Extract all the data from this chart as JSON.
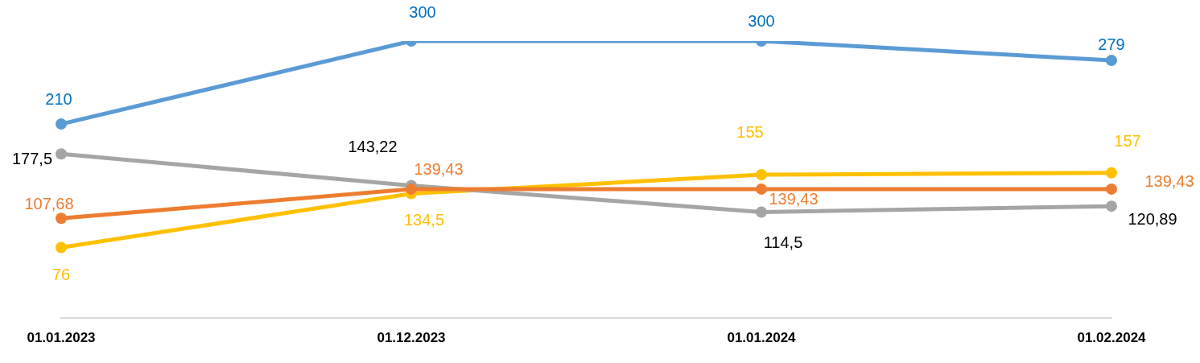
{
  "chart_data": {
    "type": "line",
    "categories": [
      "01.01.2023",
      "01.12.2023",
      "01.01.2024",
      "01.02.2024"
    ],
    "grid": false,
    "legend": false,
    "marker": "circle",
    "line_style": "solid",
    "tick_labels": "x",
    "series": [
      {
        "color": "#5b9bd5",
        "values": [
          210,
          300,
          300,
          279
        ],
        "value_labels": [
          "210",
          "300",
          "300",
          "279"
        ]
      },
      {
        "color": "#ed7d31",
        "values": [
          107.68,
          139.43,
          139.43,
          139.43
        ],
        "value_labels": [
          "107,68",
          "139,43",
          "139,43",
          "139,43"
        ]
      },
      {
        "color": "#a5a5a5",
        "values": [
          177.5,
          143.22,
          114.5,
          120.89
        ],
        "value_labels": [
          "177,5",
          "143,22",
          "114,5",
          "120,89"
        ]
      },
      {
        "color": "#ffc000",
        "values": [
          76,
          134.5,
          155,
          157
        ],
        "value_labels": [
          "76",
          "134,5",
          "155",
          "157"
        ]
      }
    ]
  }
}
